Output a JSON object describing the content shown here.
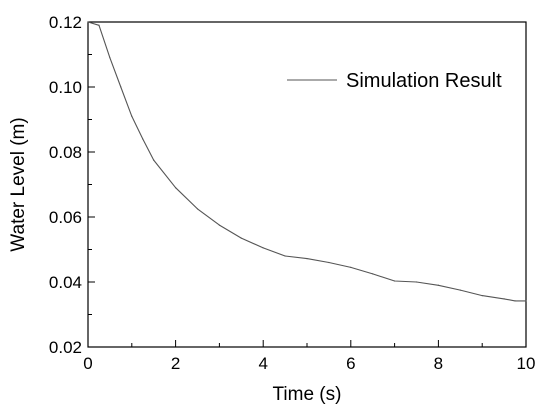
{
  "chart_data": {
    "type": "line",
    "title": "",
    "xlabel": "Time (s)",
    "ylabel": "Water Level (m)",
    "xlim": [
      0,
      10
    ],
    "ylim": [
      0.02,
      0.12
    ],
    "x_ticks": [
      0,
      2,
      4,
      6,
      8,
      10
    ],
    "x_tick_labels": [
      "0",
      "2",
      "4",
      "6",
      "8",
      "10"
    ],
    "y_ticks": [
      0.02,
      0.04,
      0.06,
      0.08,
      0.1,
      0.12
    ],
    "y_tick_labels": [
      "0.02",
      "0.04",
      "0.06",
      "0.08",
      "0.10",
      "0.12"
    ],
    "grid": false,
    "legend_position": "top-right",
    "series": [
      {
        "name": "Simulation Result",
        "color": "#555555",
        "x": [
          0,
          0.25,
          0.5,
          0.75,
          1.0,
          1.25,
          1.5,
          2.0,
          2.5,
          3.0,
          3.5,
          4.0,
          4.5,
          5.0,
          5.5,
          6.0,
          6.5,
          7.0,
          7.5,
          8.0,
          8.5,
          9.0,
          9.5,
          9.75,
          10.0
        ],
        "values": [
          0.12,
          0.119,
          0.109,
          0.1,
          0.091,
          0.084,
          0.0775,
          0.069,
          0.0625,
          0.0575,
          0.0535,
          0.0505,
          0.048,
          0.0472,
          0.046,
          0.0445,
          0.0425,
          0.0403,
          0.04,
          0.039,
          0.0375,
          0.0358,
          0.0348,
          0.0342,
          0.0342
        ]
      }
    ]
  }
}
